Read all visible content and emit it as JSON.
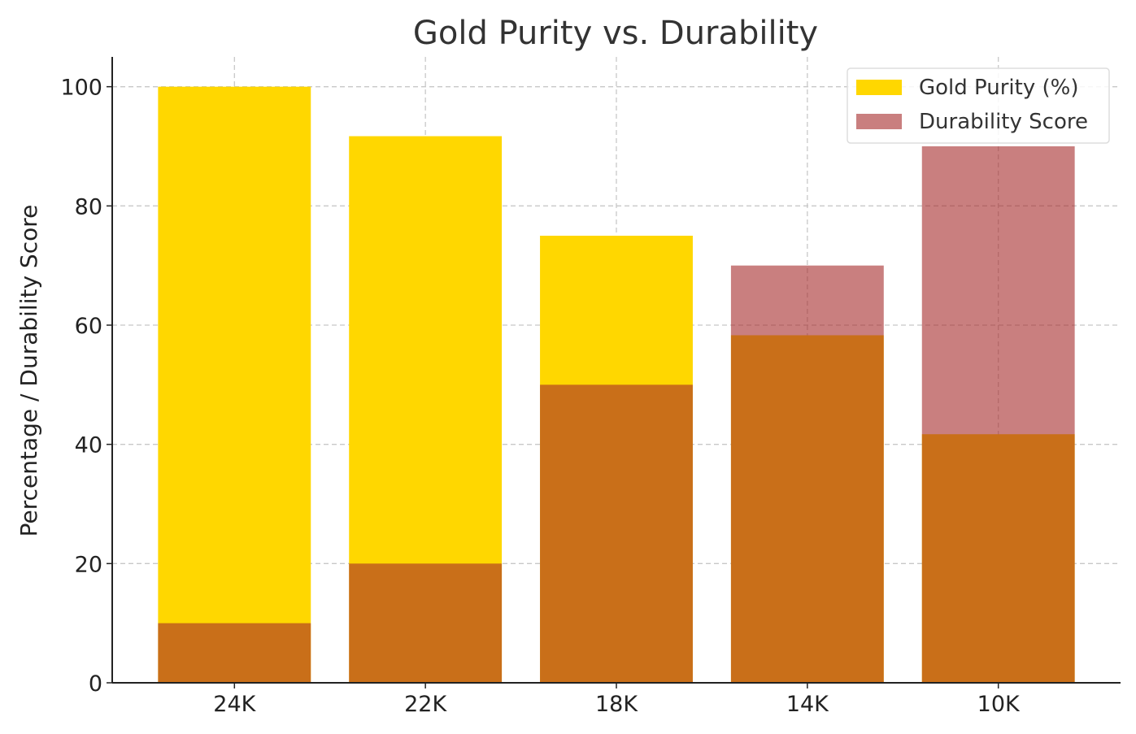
{
  "chart_data": {
    "type": "bar",
    "title": "Gold Purity vs. Durability",
    "xlabel": "",
    "ylabel": "Percentage / Durability Score",
    "categories": [
      "24K",
      "22K",
      "18K",
      "14K",
      "10K"
    ],
    "series": [
      {
        "name": "Gold Purity (%)",
        "values": [
          100,
          91.7,
          75,
          58.3,
          41.7
        ],
        "color": "#FFD700",
        "opacity": 1
      },
      {
        "name": "Durability Score",
        "values": [
          10,
          20,
          50,
          70,
          90
        ],
        "color": "#A52A2A",
        "opacity": 0.6
      }
    ],
    "ylim": [
      0,
      105
    ],
    "yticks": [
      0,
      20,
      40,
      60,
      80,
      100
    ],
    "grid": true,
    "legend_position": "top-right",
    "overlay": true
  }
}
